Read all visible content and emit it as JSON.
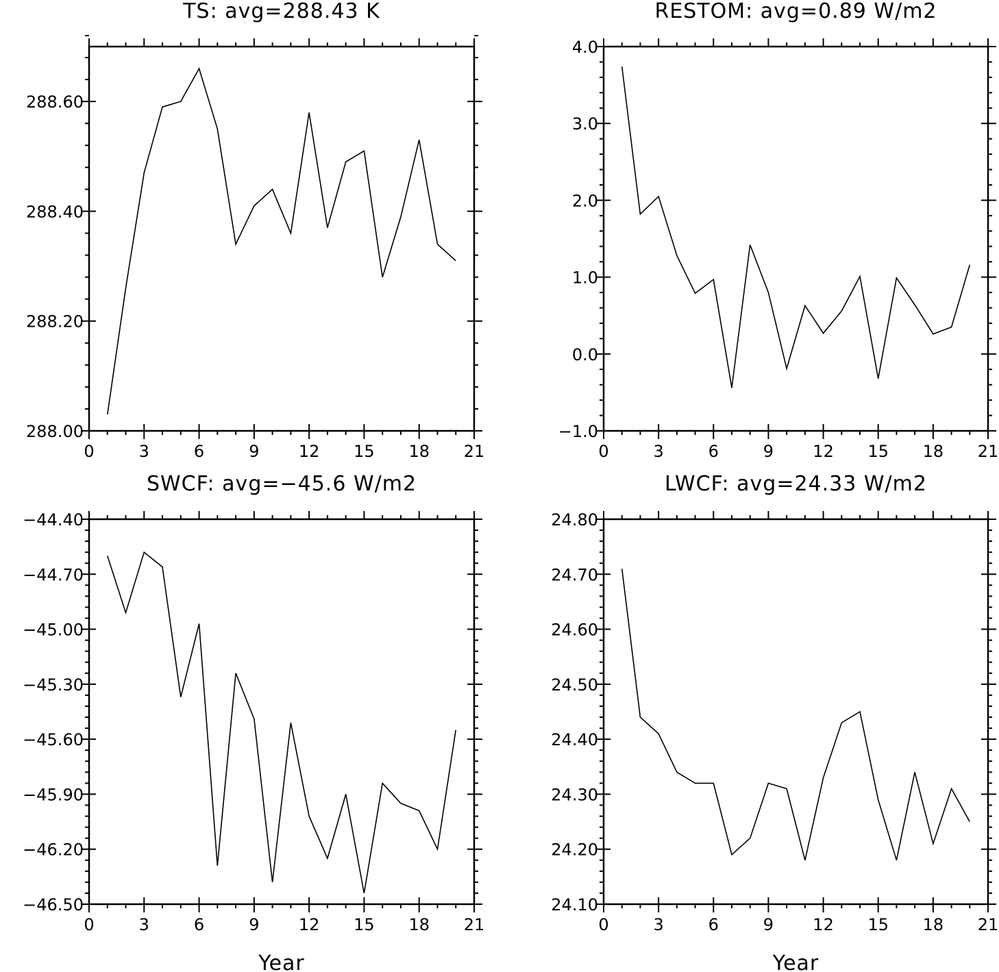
{
  "chart_data": [
    {
      "type": "line",
      "title": "TS: avg=288.43 K",
      "xlabel": "",
      "ylabel": "",
      "xlim": [
        0,
        21
      ],
      "ylim": [
        288.0,
        288.7
      ],
      "x_ticks": [
        "0",
        "3",
        "6",
        "9",
        "12",
        "15",
        "18",
        "21"
      ],
      "y_ticks": [
        "288.00",
        "288.20",
        "288.40",
        "288.60"
      ],
      "grid": false,
      "x": [
        1,
        2,
        3,
        4,
        5,
        6,
        7,
        8,
        9,
        10,
        11,
        12,
        13,
        14,
        15,
        16,
        17,
        18,
        19,
        20
      ],
      "values": [
        288.03,
        288.26,
        288.47,
        288.59,
        288.6,
        288.66,
        288.55,
        288.34,
        288.41,
        288.44,
        288.36,
        288.58,
        288.37,
        288.49,
        288.51,
        288.28,
        288.39,
        288.53,
        288.34,
        288.31
      ]
    },
    {
      "type": "line",
      "title": "RESTOM: avg=0.89 W/m2",
      "xlabel": "",
      "ylabel": "",
      "xlim": [
        0,
        21
      ],
      "ylim": [
        -1.0,
        4.0
      ],
      "x_ticks": [
        "0",
        "3",
        "6",
        "9",
        "12",
        "15",
        "18",
        "21"
      ],
      "y_ticks": [
        "−1.0",
        "0.0",
        "1.0",
        "2.0",
        "3.0",
        "4.0"
      ],
      "grid": false,
      "x": [
        1,
        2,
        3,
        4,
        5,
        6,
        7,
        8,
        9,
        10,
        11,
        12,
        13,
        14,
        15,
        16,
        17,
        18,
        19,
        20
      ],
      "values": [
        3.74,
        1.82,
        2.05,
        1.28,
        0.79,
        0.97,
        -0.44,
        1.42,
        0.8,
        -0.19,
        0.63,
        0.27,
        0.56,
        1.01,
        -0.32,
        0.99,
        0.64,
        0.26,
        0.35,
        1.16
      ]
    },
    {
      "type": "line",
      "title": "SWCF: avg=−45.6 W/m2",
      "xlabel": "Year",
      "ylabel": "",
      "xlim": [
        0,
        21
      ],
      "ylim": [
        -46.5,
        -44.4
      ],
      "x_ticks": [
        "0",
        "3",
        "6",
        "9",
        "12",
        "15",
        "18",
        "21"
      ],
      "y_ticks": [
        "−46.50",
        "−46.20",
        "−45.90",
        "−45.60",
        "−45.30",
        "−45.00",
        "−44.70",
        "−44.40"
      ],
      "grid": false,
      "x": [
        1,
        2,
        3,
        4,
        5,
        6,
        7,
        8,
        9,
        10,
        11,
        12,
        13,
        14,
        15,
        16,
        17,
        18,
        19,
        20
      ],
      "values": [
        -44.6,
        -44.91,
        -44.58,
        -44.66,
        -45.37,
        -44.97,
        -46.29,
        -45.24,
        -45.49,
        -46.38,
        -45.51,
        -46.02,
        -46.25,
        -45.9,
        -46.44,
        -45.84,
        -45.95,
        -45.99,
        -46.2,
        -45.55
      ]
    },
    {
      "type": "line",
      "title": "LWCF: avg=24.33 W/m2",
      "xlabel": "Year",
      "ylabel": "",
      "xlim": [
        0,
        21
      ],
      "ylim": [
        24.1,
        24.8
      ],
      "x_ticks": [
        "0",
        "3",
        "6",
        "9",
        "12",
        "15",
        "18",
        "21"
      ],
      "y_ticks": [
        "24.10",
        "24.20",
        "24.30",
        "24.40",
        "24.50",
        "24.60",
        "24.70",
        "24.80"
      ],
      "grid": false,
      "x": [
        1,
        2,
        3,
        4,
        5,
        6,
        7,
        8,
        9,
        10,
        11,
        12,
        13,
        14,
        15,
        16,
        17,
        18,
        19,
        20
      ],
      "values": [
        24.71,
        24.44,
        24.41,
        24.34,
        24.32,
        24.32,
        24.19,
        24.22,
        24.32,
        24.31,
        24.18,
        24.33,
        24.43,
        24.45,
        24.29,
        24.18,
        24.34,
        24.21,
        24.31,
        24.25
      ]
    }
  ]
}
